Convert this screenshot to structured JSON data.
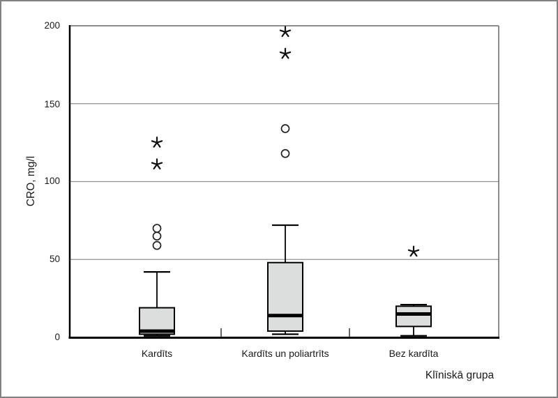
{
  "figure": {
    "background": "#ffffff",
    "outer_border_color": "#818181"
  },
  "chart_data": {
    "type": "boxplot",
    "title": "",
    "xlabel": "Klīniskā grupa",
    "ylabel": "CRO, mg/l",
    "ylim": [
      0,
      200
    ],
    "y_ticks": [
      0,
      50,
      100,
      150,
      200
    ],
    "grid": "horizontal",
    "legend": "none",
    "categories": [
      "Kardīts",
      "Kardīts un poliartrīts",
      "Bez kardīta"
    ],
    "series": [
      {
        "category": "Kardīts",
        "min": 1,
        "q1": 2,
        "median": 4,
        "q3": 19,
        "max": 42,
        "outliers": [
          59,
          65,
          70
        ],
        "extremes": [
          111,
          125
        ]
      },
      {
        "category": "Kardīts un poliartrīts",
        "min": 2,
        "q1": 4,
        "median": 14,
        "q3": 48,
        "max": 72,
        "outliers": [
          118,
          134
        ],
        "extremes": [
          182,
          196
        ]
      },
      {
        "category": "Bez kardīta",
        "min": 1,
        "q1": 7,
        "median": 15,
        "q3": 20,
        "max": 21,
        "outliers": [],
        "extremes": [
          55
        ]
      }
    ],
    "markers": {
      "outlier": "circle",
      "extreme": "asterisk-star"
    },
    "colors": {
      "box_fill": "#dcdddd",
      "box_stroke": "#000000",
      "median": "#000000",
      "whisker": "#000000",
      "grid": "#909090",
      "frame": "#7d7d7d",
      "axis": "#000000",
      "marker_stroke": "#222222",
      "text": "#1a1a1a"
    }
  }
}
